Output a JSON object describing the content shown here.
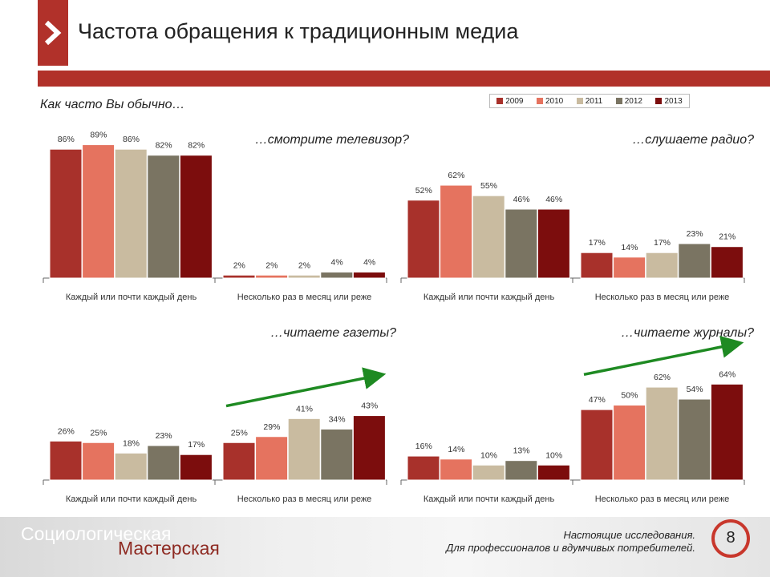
{
  "header": {
    "title": "Частота обращения к традиционным медиа",
    "accent_color": "#b1312a"
  },
  "question": "Как часто Вы обычно…",
  "legend": [
    "2009",
    "2010",
    "2011",
    "2012",
    "2013"
  ],
  "colors": [
    "#a8312b",
    "#e5735f",
    "#c9bba0",
    "#7a7462",
    "#7c0d0d"
  ],
  "chart_data": [
    {
      "type": "bar",
      "title": "…смотрите телевизор?",
      "categories": [
        "Каждый или почти каждый день",
        "Несколько раз в месяц или реже"
      ],
      "series": [
        {
          "name": "2009",
          "values": [
            86,
            2
          ]
        },
        {
          "name": "2010",
          "values": [
            89,
            2
          ]
        },
        {
          "name": "2011",
          "values": [
            86,
            2
          ]
        },
        {
          "name": "2012",
          "values": [
            82,
            4
          ]
        },
        {
          "name": "2013",
          "values": [
            82,
            4
          ]
        }
      ],
      "ylim": [
        0,
        100
      ],
      "grid": false
    },
    {
      "type": "bar",
      "title": "…слушаете радио?",
      "categories": [
        "Каждый или почти каждый день",
        "Несколько раз в месяц или реже"
      ],
      "series": [
        {
          "name": "2009",
          "values": [
            52,
            17
          ]
        },
        {
          "name": "2010",
          "values": [
            62,
            14
          ]
        },
        {
          "name": "2011",
          "values": [
            55,
            17
          ]
        },
        {
          "name": "2012",
          "values": [
            46,
            23
          ]
        },
        {
          "name": "2013",
          "values": [
            46,
            21
          ]
        }
      ],
      "ylim": [
        0,
        100
      ],
      "grid": false
    },
    {
      "type": "bar",
      "title": "…читаете газеты?",
      "categories": [
        "Каждый или почти каждый день",
        "Несколько раз в месяц или реже"
      ],
      "series": [
        {
          "name": "2009",
          "values": [
            26,
            25
          ]
        },
        {
          "name": "2010",
          "values": [
            25,
            29
          ]
        },
        {
          "name": "2011",
          "values": [
            18,
            41
          ]
        },
        {
          "name": "2012",
          "values": [
            23,
            34
          ]
        },
        {
          "name": "2013",
          "values": [
            17,
            43
          ]
        }
      ],
      "ylim": [
        0,
        100
      ],
      "grid": false,
      "trend_arrow_group": 1
    },
    {
      "type": "bar",
      "title": "…читаете журналы?",
      "categories": [
        "Каждый или почти каждый день",
        "Несколько раз в месяц или реже"
      ],
      "series": [
        {
          "name": "2009",
          "values": [
            16,
            47
          ]
        },
        {
          "name": "2010",
          "values": [
            14,
            50
          ]
        },
        {
          "name": "2011",
          "values": [
            10,
            62
          ]
        },
        {
          "name": "2012",
          "values": [
            13,
            54
          ]
        },
        {
          "name": "2013",
          "values": [
            10,
            64
          ]
        }
      ],
      "ylim": [
        0,
        100
      ],
      "grid": false,
      "trend_arrow_group": 1
    }
  ],
  "footer": {
    "brand_line1": "Социологическая",
    "brand_line2": "Мастерская",
    "tagline1": "Настоящие исследования.",
    "tagline2": "Для профессионалов и вдумчивых потребителей.",
    "page_number": "8"
  }
}
